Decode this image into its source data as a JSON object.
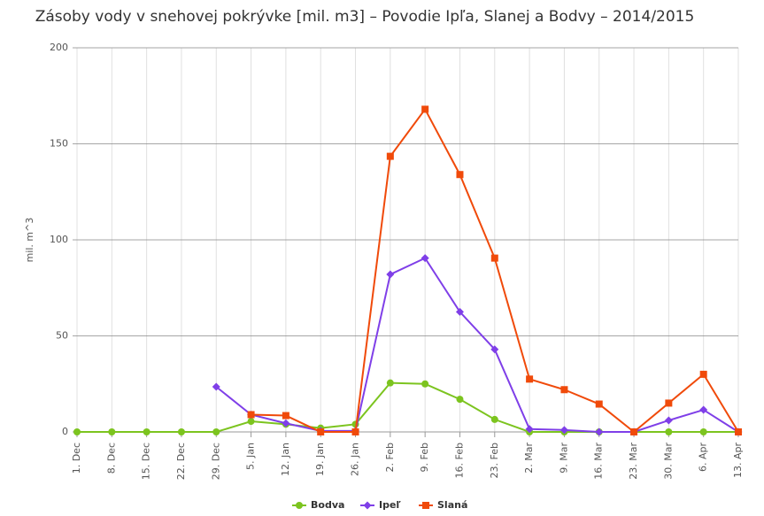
{
  "chart_data": {
    "type": "line",
    "title": "Zásoby vody v snehovej pokrývke [mil. m3] – Povodie Ipľa, Slanej a Bodvy – 2014/2015",
    "y_label": "mil. m^3",
    "categories": [
      "1. Dec",
      "8. Dec",
      "15. Dec",
      "22. Dec",
      "29. Dec",
      "5. Jan",
      "12. Jan",
      "19. Jan",
      "26. Jan",
      "2. Feb",
      "9. Feb",
      "16. Feb",
      "23. Feb",
      "2. Mar",
      "9. Mar",
      "16. Mar",
      "23. Mar",
      "30. Mar",
      "6. Apr",
      "13. Apr"
    ],
    "series": [
      {
        "name": "Bodva",
        "color": "#7cc41f",
        "marker": "circle",
        "values": [
          0,
          0,
          0,
          0,
          0,
          5.5,
          4,
          2,
          4,
          25.5,
          25,
          17,
          6.5,
          0,
          0,
          0,
          0,
          0,
          0,
          0
        ]
      },
      {
        "name": "Ipeľ",
        "color": "#7f3fe8",
        "marker": "diamond",
        "values": [
          null,
          null,
          null,
          null,
          23.5,
          9,
          4.5,
          0.5,
          0.5,
          82,
          90.5,
          62.5,
          43,
          1.5,
          1,
          0,
          0,
          6,
          11.5,
          0
        ]
      },
      {
        "name": "Slaná",
        "color": "#f04a0a",
        "marker": "square",
        "values": [
          null,
          null,
          null,
          null,
          null,
          9,
          8.5,
          0,
          0,
          143.5,
          168,
          134,
          90.5,
          27.5,
          22,
          14.5,
          0,
          15,
          30,
          0
        ]
      }
    ],
    "ylim": [
      0,
      200
    ],
    "yticks": [
      0,
      50,
      100,
      150,
      200
    ],
    "grid": true,
    "legend": "bottom"
  }
}
